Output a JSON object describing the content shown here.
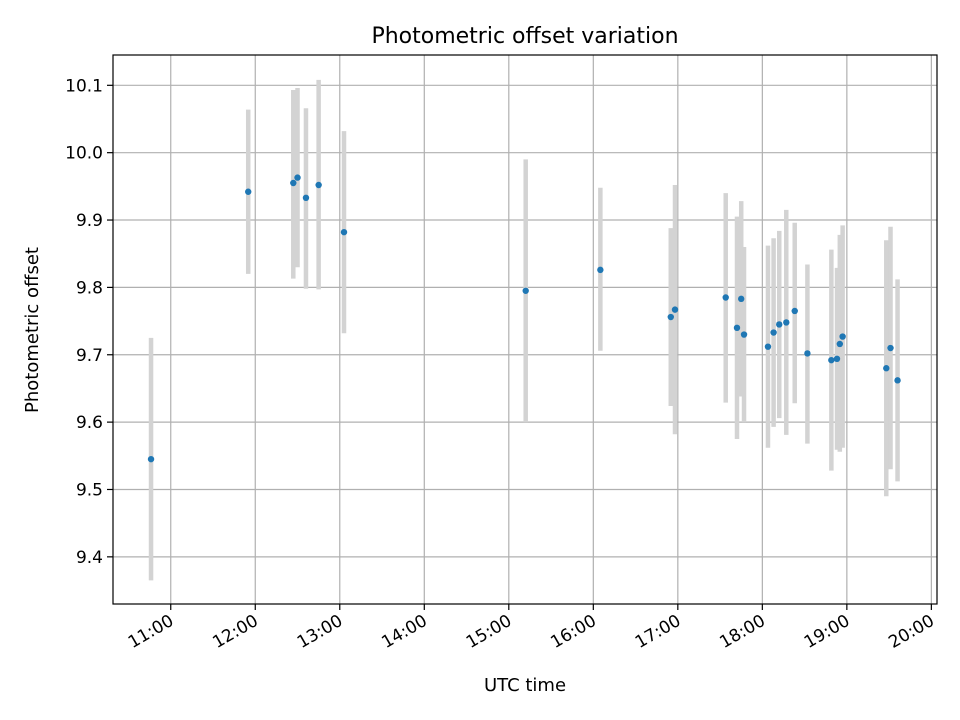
{
  "chart_data": {
    "type": "scatter",
    "title": "Photometric offset variation",
    "xlabel": "UTC time",
    "ylabel": "Photometric offset",
    "x_unit": "hours UTC",
    "xlim": [
      "10:19",
      "20:04"
    ],
    "ylim": [
      9.33,
      10.145
    ],
    "x_ticks": [
      "11:00",
      "12:00",
      "13:00",
      "14:00",
      "15:00",
      "16:00",
      "17:00",
      "18:00",
      "19:00",
      "20:00"
    ],
    "y_ticks": [
      "9.4",
      "9.5",
      "9.6",
      "9.7",
      "9.8",
      "9.9",
      "10.0",
      "10.1"
    ],
    "grid": true,
    "marker_color": "#1f77b4",
    "errorbar_color": "#d3d3d3",
    "points": [
      {
        "x": "10:46",
        "y": 9.545,
        "low": 9.365,
        "high": 9.725
      },
      {
        "x": "11:55",
        "y": 9.942,
        "low": 9.82,
        "high": 10.064
      },
      {
        "x": "12:27",
        "y": 9.955,
        "low": 9.813,
        "high": 10.093
      },
      {
        "x": "12:30",
        "y": 9.963,
        "low": 9.83,
        "high": 10.096
      },
      {
        "x": "12:36",
        "y": 9.933,
        "low": 9.798,
        "high": 10.066
      },
      {
        "x": "12:45",
        "y": 9.952,
        "low": 9.797,
        "high": 10.108
      },
      {
        "x": "13:03",
        "y": 9.882,
        "low": 9.732,
        "high": 10.032
      },
      {
        "x": "15:12",
        "y": 9.795,
        "low": 9.6,
        "high": 9.99
      },
      {
        "x": "16:05",
        "y": 9.826,
        "low": 9.706,
        "high": 9.948
      },
      {
        "x": "16:55",
        "y": 9.756,
        "low": 9.624,
        "high": 9.888
      },
      {
        "x": "16:58",
        "y": 9.767,
        "low": 9.582,
        "high": 9.952
      },
      {
        "x": "17:34",
        "y": 9.785,
        "low": 9.629,
        "high": 9.94
      },
      {
        "x": "17:42",
        "y": 9.74,
        "low": 9.575,
        "high": 9.905
      },
      {
        "x": "17:45",
        "y": 9.783,
        "low": 9.638,
        "high": 9.928
      },
      {
        "x": "17:47",
        "y": 9.73,
        "low": 9.6,
        "high": 9.86
      },
      {
        "x": "18:04",
        "y": 9.712,
        "low": 9.562,
        "high": 9.862
      },
      {
        "x": "18:08",
        "y": 9.733,
        "low": 9.593,
        "high": 9.873
      },
      {
        "x": "18:12",
        "y": 9.745,
        "low": 9.606,
        "high": 9.884
      },
      {
        "x": "18:17",
        "y": 9.748,
        "low": 9.581,
        "high": 9.915
      },
      {
        "x": "18:23",
        "y": 9.765,
        "low": 9.628,
        "high": 9.896
      },
      {
        "x": "18:32",
        "y": 9.702,
        "low": 9.568,
        "high": 9.834
      },
      {
        "x": "18:49",
        "y": 9.692,
        "low": 9.528,
        "high": 9.856
      },
      {
        "x": "18:53",
        "y": 9.694,
        "low": 9.559,
        "high": 9.829
      },
      {
        "x": "18:55",
        "y": 9.716,
        "low": 9.556,
        "high": 9.878
      },
      {
        "x": "18:57",
        "y": 9.727,
        "low": 9.562,
        "high": 9.892
      },
      {
        "x": "19:28",
        "y": 9.68,
        "low": 9.49,
        "high": 9.87
      },
      {
        "x": "19:31",
        "y": 9.71,
        "low": 9.53,
        "high": 9.89
      },
      {
        "x": "19:36",
        "y": 9.662,
        "low": 9.512,
        "high": 9.812
      }
    ]
  }
}
